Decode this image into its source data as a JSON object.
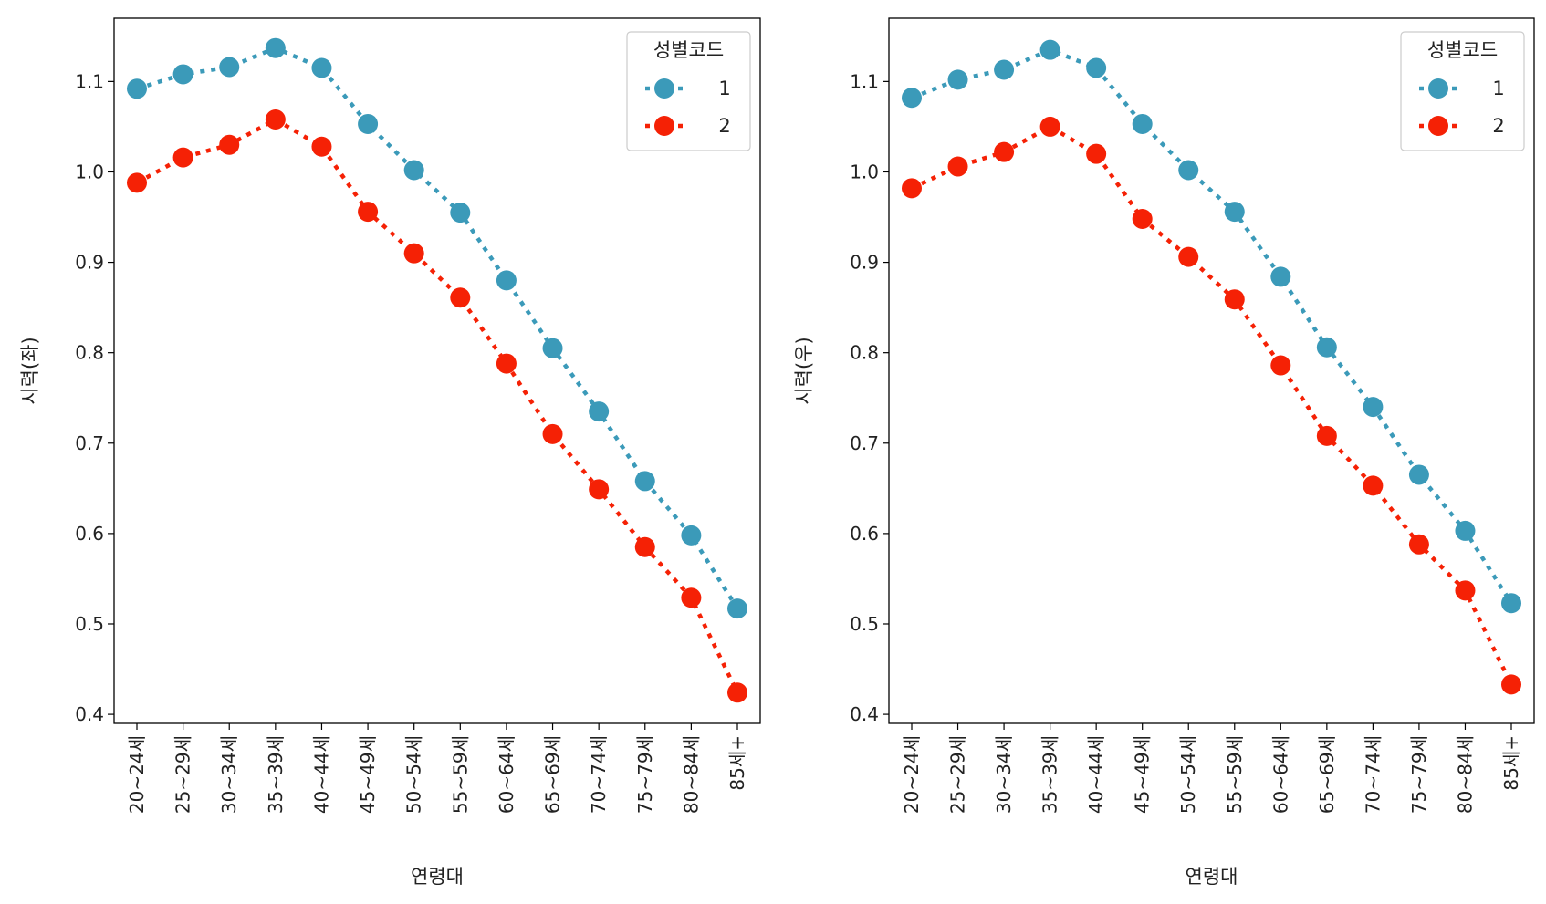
{
  "colors": {
    "series_1": "#3b9ab9",
    "series_2": "#f52105"
  },
  "chart_data": [
    {
      "type": "line",
      "xlabel": "연령대",
      "ylabel": "시력(좌)",
      "ylim": [
        0.39,
        1.17
      ],
      "yticks": [
        "0.4",
        "0.5",
        "0.6",
        "0.7",
        "0.8",
        "0.9",
        "1.0",
        "1.1"
      ],
      "categories": [
        "20~24세",
        "25~29세",
        "30~34세",
        "35~39세",
        "40~44세",
        "45~49세",
        "50~54세",
        "55~59세",
        "60~64세",
        "65~69세",
        "70~74세",
        "75~79세",
        "80~84세",
        "85세+"
      ],
      "legend": {
        "title": "성별코드",
        "placement": "top-right"
      },
      "series": [
        {
          "name": "1",
          "values": [
            1.092,
            1.108,
            1.116,
            1.137,
            1.115,
            1.053,
            1.002,
            0.955,
            0.88,
            0.805,
            0.735,
            0.658,
            0.598,
            0.517
          ]
        },
        {
          "name": "2",
          "values": [
            0.988,
            1.016,
            1.03,
            1.058,
            1.028,
            0.956,
            0.91,
            0.861,
            0.788,
            0.71,
            0.649,
            0.585,
            0.529,
            0.424
          ]
        }
      ]
    },
    {
      "type": "line",
      "xlabel": "연령대",
      "ylabel": "시력(우)",
      "ylim": [
        0.39,
        1.17
      ],
      "yticks": [
        "0.4",
        "0.5",
        "0.6",
        "0.7",
        "0.8",
        "0.9",
        "1.0",
        "1.1"
      ],
      "categories": [
        "20~24세",
        "25~29세",
        "30~34세",
        "35~39세",
        "40~44세",
        "45~49세",
        "50~54세",
        "55~59세",
        "60~64세",
        "65~69세",
        "70~74세",
        "75~79세",
        "80~84세",
        "85세+"
      ],
      "legend": {
        "title": "성별코드",
        "placement": "top-right"
      },
      "series": [
        {
          "name": "1",
          "values": [
            1.082,
            1.102,
            1.113,
            1.135,
            1.115,
            1.053,
            1.002,
            0.956,
            0.884,
            0.806,
            0.74,
            0.665,
            0.603,
            0.523
          ]
        },
        {
          "name": "2",
          "values": [
            0.982,
            1.006,
            1.022,
            1.05,
            1.02,
            0.948,
            0.906,
            0.859,
            0.786,
            0.708,
            0.653,
            0.588,
            0.537,
            0.433
          ]
        }
      ]
    }
  ]
}
